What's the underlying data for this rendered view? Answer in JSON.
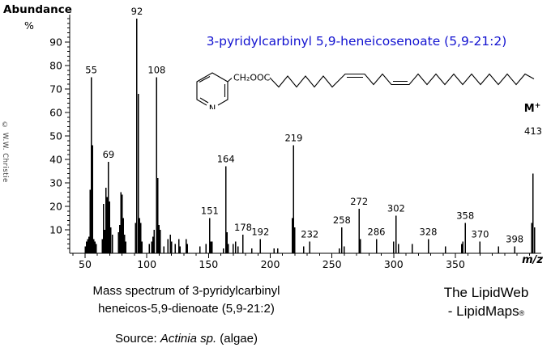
{
  "y_axis": {
    "title": "Abundance",
    "unit": "%"
  },
  "x_axis": {
    "label": "m/z"
  },
  "title": {
    "text": "3-pyridylcarbinyl 5,9-heneicosenoate (5,9-21:2)",
    "color": "#1212d0"
  },
  "structure": {
    "n_label": "N",
    "ester_label": "CH₂OOC"
  },
  "credit": "© W.W. Christie",
  "chart_data": {
    "type": "bar",
    "title": "3-pyridylcarbinyl 5,9-heneicosenoate (5,9-21:2)",
    "xlabel": "m/z",
    "ylabel": "Abundance %",
    "xlim": [
      38,
      420
    ],
    "ylim": [
      0,
      100
    ],
    "grid": false,
    "x_ticks": [
      50,
      100,
      150,
      200,
      250,
      300,
      350
    ],
    "y_ticks": [
      10,
      20,
      30,
      40,
      50,
      60,
      70,
      80,
      90
    ],
    "peaks": [
      [
        50,
        3
      ],
      [
        51,
        5
      ],
      [
        52,
        6
      ],
      [
        53,
        7
      ],
      [
        54,
        27
      ],
      [
        55,
        75
      ],
      [
        56,
        46
      ],
      [
        57,
        6
      ],
      [
        58,
        5
      ],
      [
        59,
        4
      ],
      [
        64,
        6
      ],
      [
        65,
        21
      ],
      [
        66,
        10
      ],
      [
        67,
        28
      ],
      [
        68,
        24
      ],
      [
        69,
        39
      ],
      [
        70,
        22
      ],
      [
        71,
        11
      ],
      [
        72,
        8
      ],
      [
        77,
        9
      ],
      [
        78,
        12
      ],
      [
        79,
        26
      ],
      [
        80,
        25
      ],
      [
        81,
        15
      ],
      [
        82,
        8
      ],
      [
        83,
        5
      ],
      [
        91,
        13
      ],
      [
        92,
        100
      ],
      [
        93,
        68
      ],
      [
        94,
        15
      ],
      [
        95,
        13
      ],
      [
        96,
        5
      ],
      [
        102,
        4
      ],
      [
        104,
        5
      ],
      [
        105,
        7
      ],
      [
        106,
        10
      ],
      [
        108,
        75
      ],
      [
        109,
        32
      ],
      [
        110,
        12
      ],
      [
        111,
        10
      ],
      [
        114,
        3
      ],
      [
        117,
        6
      ],
      [
        119,
        8
      ],
      [
        120,
        5
      ],
      [
        123,
        4
      ],
      [
        126,
        6
      ],
      [
        127,
        3
      ],
      [
        132,
        6
      ],
      [
        133,
        4
      ],
      [
        143,
        3
      ],
      [
        148,
        4
      ],
      [
        151,
        15
      ],
      [
        152,
        5
      ],
      [
        153,
        5
      ],
      [
        162,
        2
      ],
      [
        164,
        37
      ],
      [
        165,
        9
      ],
      [
        166,
        4
      ],
      [
        170,
        4
      ],
      [
        172,
        5
      ],
      [
        174,
        3
      ],
      [
        178,
        8
      ],
      [
        185,
        2
      ],
      [
        192,
        6
      ],
      [
        203,
        2
      ],
      [
        206,
        2
      ],
      [
        218,
        15
      ],
      [
        219,
        46
      ],
      [
        220,
        11
      ],
      [
        227,
        3
      ],
      [
        232,
        5
      ],
      [
        256,
        2
      ],
      [
        258,
        11
      ],
      [
        260,
        3
      ],
      [
        272,
        19
      ],
      [
        273,
        6
      ],
      [
        286,
        6
      ],
      [
        300,
        5
      ],
      [
        302,
        16
      ],
      [
        304,
        4
      ],
      [
        315,
        4
      ],
      [
        328,
        6
      ],
      [
        342,
        3
      ],
      [
        355,
        4
      ],
      [
        356,
        5
      ],
      [
        358,
        13
      ],
      [
        370,
        5
      ],
      [
        385,
        3
      ],
      [
        398,
        3
      ],
      [
        412,
        13
      ],
      [
        413,
        34
      ],
      [
        414,
        11
      ]
    ],
    "labeled_peaks": [
      55,
      69,
      92,
      108,
      151,
      164,
      178,
      192,
      219,
      232,
      258,
      272,
      286,
      302,
      328,
      358,
      370,
      398,
      413
    ],
    "molecular_ion": {
      "mz": 413,
      "label": "M",
      "charge": "+"
    }
  },
  "captions": {
    "line1": "Mass spectrum of 3-pyridylcarbinyl",
    "line2": "heneicos-5,9-dienoate (5,9-21:2)",
    "source_prefix": "Source:  ",
    "source_species": "Actinia sp.",
    "source_suffix": " (algae)"
  },
  "branding": {
    "line1": "The LipidWeb",
    "line2": "- LipidMaps",
    "registered": "®"
  }
}
